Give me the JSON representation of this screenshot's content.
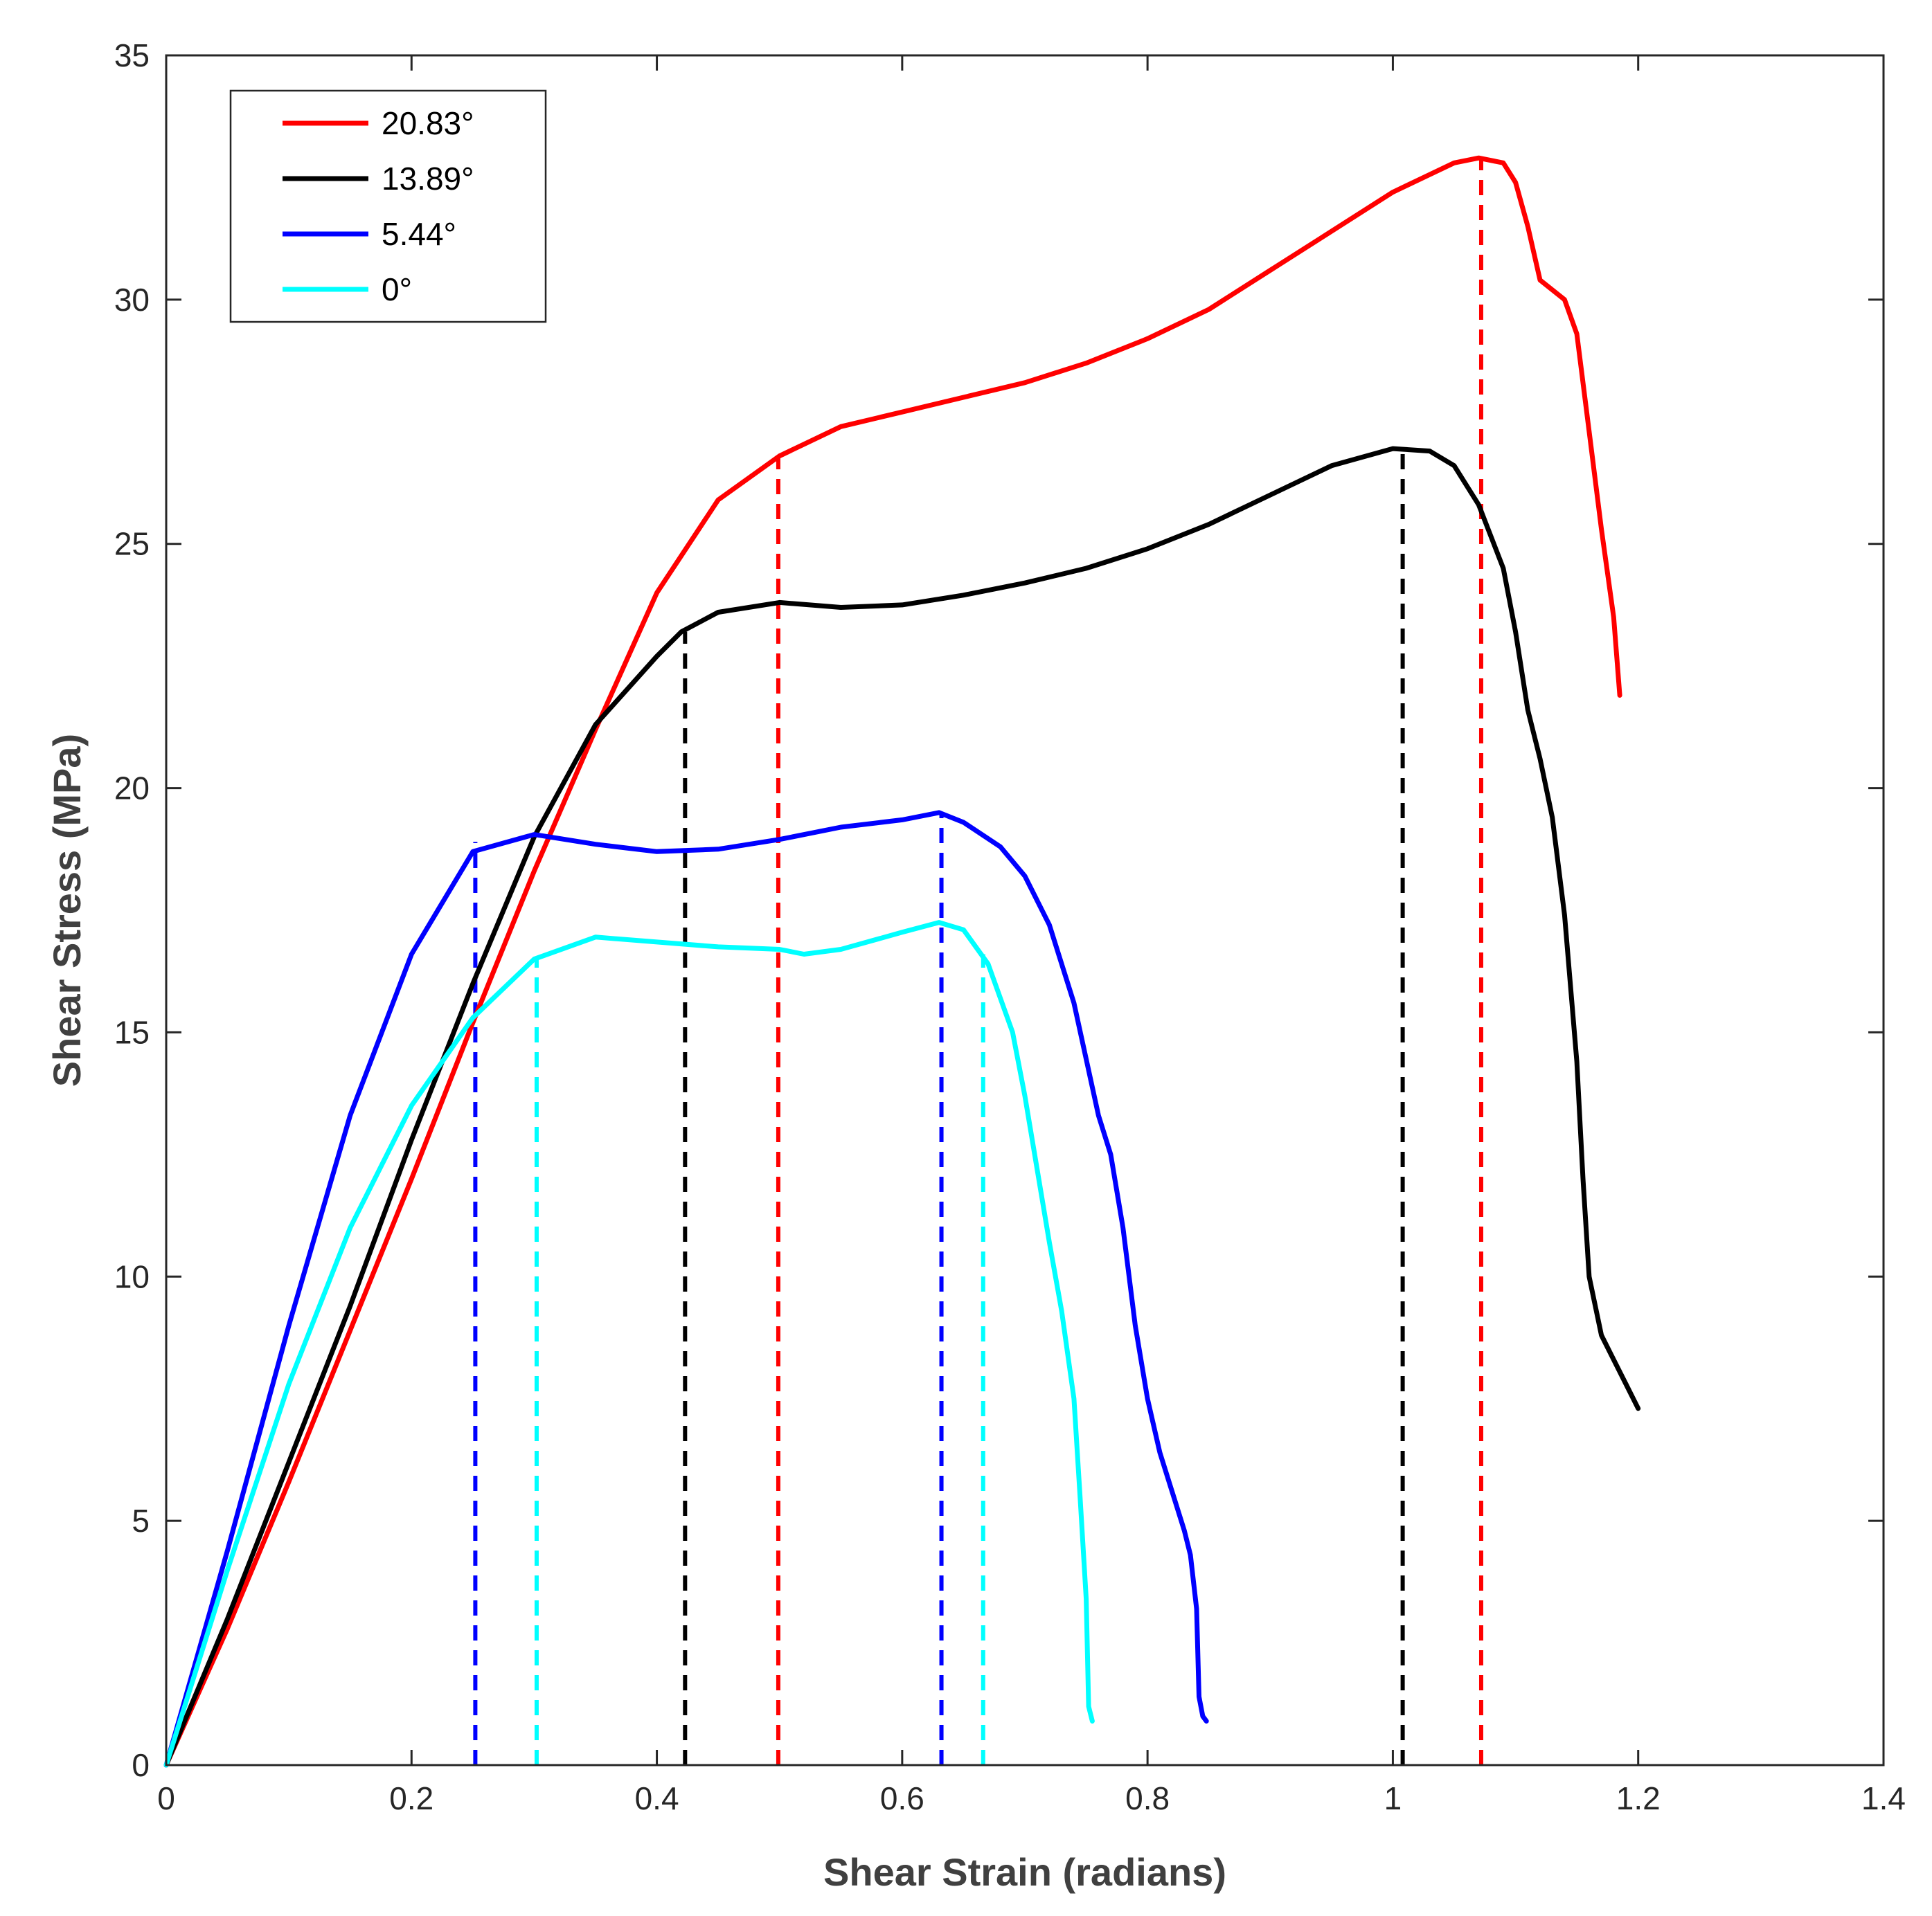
{
  "chart_data": {
    "type": "line",
    "title": "",
    "xlabel": "Shear Strain (radians)",
    "ylabel": "Shear Stress (MPa)",
    "xlim": [
      0,
      1.4
    ],
    "ylim": [
      0,
      35
    ],
    "xticks": [
      0,
      0.2,
      0.4,
      0.6,
      0.8,
      1,
      1.2,
      1.4
    ],
    "xtick_labels": [
      "0",
      "0.2",
      "0.4",
      "0.6",
      "0.8",
      "1",
      "1.2",
      "1.4"
    ],
    "yticks": [
      0,
      5,
      10,
      15,
      20,
      25,
      30,
      35
    ],
    "ytick_labels": [
      "0",
      "5",
      "10",
      "15",
      "20",
      "25",
      "30",
      "35"
    ],
    "grid": false,
    "legend_position": "top-left",
    "series": [
      {
        "name": "20.83°",
        "color": "#ff0000",
        "points": [
          [
            0,
            0
          ],
          [
            0.05,
            2.8
          ],
          [
            0.1,
            5.8
          ],
          [
            0.15,
            8.9
          ],
          [
            0.2,
            12.0
          ],
          [
            0.25,
            15.2
          ],
          [
            0.3,
            18.3
          ],
          [
            0.35,
            21.2
          ],
          [
            0.4,
            24.0
          ],
          [
            0.45,
            25.9
          ],
          [
            0.5,
            26.8
          ],
          [
            0.55,
            27.4
          ],
          [
            0.6,
            27.7
          ],
          [
            0.65,
            28.0
          ],
          [
            0.7,
            28.3
          ],
          [
            0.75,
            28.7
          ],
          [
            0.8,
            29.2
          ],
          [
            0.85,
            29.8
          ],
          [
            0.9,
            30.6
          ],
          [
            0.95,
            31.4
          ],
          [
            1.0,
            32.2
          ],
          [
            1.05,
            32.8
          ],
          [
            1.07,
            32.9
          ],
          [
            1.09,
            32.8
          ],
          [
            1.1,
            32.4
          ],
          [
            1.11,
            31.5
          ],
          [
            1.12,
            30.4
          ],
          [
            1.13,
            30.2
          ],
          [
            1.14,
            30.0
          ],
          [
            1.15,
            29.3
          ],
          [
            1.16,
            27.3
          ],
          [
            1.17,
            25.3
          ],
          [
            1.18,
            23.5
          ],
          [
            1.185,
            21.9
          ]
        ]
      },
      {
        "name": "13.89°",
        "color": "#000000",
        "points": [
          [
            0,
            0
          ],
          [
            0.05,
            3.0
          ],
          [
            0.1,
            6.2
          ],
          [
            0.15,
            9.4
          ],
          [
            0.2,
            12.8
          ],
          [
            0.25,
            16.0
          ],
          [
            0.3,
            19.0
          ],
          [
            0.35,
            21.3
          ],
          [
            0.4,
            22.7
          ],
          [
            0.42,
            23.2
          ],
          [
            0.45,
            23.6
          ],
          [
            0.5,
            23.8
          ],
          [
            0.55,
            23.7
          ],
          [
            0.6,
            23.75
          ],
          [
            0.65,
            23.95
          ],
          [
            0.7,
            24.2
          ],
          [
            0.75,
            24.5
          ],
          [
            0.8,
            24.9
          ],
          [
            0.85,
            25.4
          ],
          [
            0.9,
            26.0
          ],
          [
            0.95,
            26.6
          ],
          [
            1.0,
            26.95
          ],
          [
            1.03,
            26.9
          ],
          [
            1.05,
            26.6
          ],
          [
            1.07,
            25.8
          ],
          [
            1.09,
            24.5
          ],
          [
            1.1,
            23.2
          ],
          [
            1.11,
            21.6
          ],
          [
            1.12,
            20.6
          ],
          [
            1.13,
            19.4
          ],
          [
            1.14,
            17.4
          ],
          [
            1.15,
            14.4
          ],
          [
            1.155,
            12.0
          ],
          [
            1.16,
            10.0
          ],
          [
            1.17,
            8.8
          ],
          [
            1.18,
            8.3
          ],
          [
            1.19,
            7.8
          ],
          [
            1.2,
            7.3
          ]
        ]
      },
      {
        "name": "5.44°",
        "color": "#0000ff",
        "points": [
          [
            0,
            0
          ],
          [
            0.05,
            4.4
          ],
          [
            0.1,
            9.0
          ],
          [
            0.15,
            13.3
          ],
          [
            0.2,
            16.6
          ],
          [
            0.25,
            18.7
          ],
          [
            0.3,
            19.05
          ],
          [
            0.35,
            18.85
          ],
          [
            0.4,
            18.7
          ],
          [
            0.45,
            18.75
          ],
          [
            0.5,
            18.95
          ],
          [
            0.55,
            19.2
          ],
          [
            0.6,
            19.35
          ],
          [
            0.63,
            19.5
          ],
          [
            0.65,
            19.3
          ],
          [
            0.68,
            18.8
          ],
          [
            0.7,
            18.2
          ],
          [
            0.72,
            17.2
          ],
          [
            0.74,
            15.6
          ],
          [
            0.76,
            13.3
          ],
          [
            0.77,
            12.5
          ],
          [
            0.78,
            11.0
          ],
          [
            0.79,
            9.0
          ],
          [
            0.8,
            7.5
          ],
          [
            0.81,
            6.4
          ],
          [
            0.82,
            5.6
          ],
          [
            0.83,
            4.8
          ],
          [
            0.835,
            4.3
          ],
          [
            0.84,
            3.2
          ],
          [
            0.842,
            1.4
          ],
          [
            0.845,
            1.0
          ],
          [
            0.848,
            0.9
          ]
        ]
      },
      {
        "name": "0°",
        "color": "#00ffff",
        "points": [
          [
            0,
            0
          ],
          [
            0.05,
            4.0
          ],
          [
            0.1,
            7.8
          ],
          [
            0.15,
            11.0
          ],
          [
            0.2,
            13.5
          ],
          [
            0.25,
            15.3
          ],
          [
            0.3,
            16.5
          ],
          [
            0.35,
            16.95
          ],
          [
            0.4,
            16.85
          ],
          [
            0.45,
            16.75
          ],
          [
            0.5,
            16.7
          ],
          [
            0.52,
            16.6
          ],
          [
            0.55,
            16.7
          ],
          [
            0.6,
            17.05
          ],
          [
            0.63,
            17.25
          ],
          [
            0.65,
            17.1
          ],
          [
            0.67,
            16.4
          ],
          [
            0.69,
            15.0
          ],
          [
            0.7,
            13.7
          ],
          [
            0.71,
            12.2
          ],
          [
            0.72,
            10.7
          ],
          [
            0.73,
            9.3
          ],
          [
            0.74,
            7.5
          ],
          [
            0.745,
            5.5
          ],
          [
            0.75,
            3.4
          ],
          [
            0.752,
            1.2
          ],
          [
            0.755,
            0.9
          ]
        ]
      }
    ],
    "markers": [
      {
        "x": 0.252,
        "y_top": 18.9,
        "color": "#0000ff"
      },
      {
        "x": 0.302,
        "y_top": 16.5,
        "color": "#00ffff"
      },
      {
        "x": 0.423,
        "y_top": 23.2,
        "color": "#000000"
      },
      {
        "x": 0.499,
        "y_top": 26.8,
        "color": "#ff0000"
      },
      {
        "x": 0.632,
        "y_top": 19.5,
        "color": "#0000ff"
      },
      {
        "x": 0.666,
        "y_top": 16.6,
        "color": "#00ffff"
      },
      {
        "x": 1.008,
        "y_top": 26.95,
        "color": "#000000"
      },
      {
        "x": 1.072,
        "y_top": 32.9,
        "color": "#ff0000"
      }
    ]
  }
}
